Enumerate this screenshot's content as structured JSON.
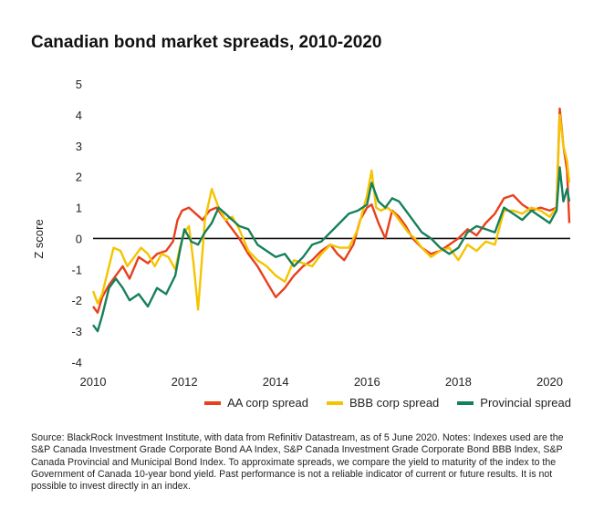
{
  "title": "Canadian bond market spreads, 2010-2020",
  "source": "Source: BlackRock Investment Institute, with data from Refinitiv Datastream, as of 5 June 2020. Notes: Indexes used are the S&P Canada Investment Grade Corporate Bond AA Index, S&P Canada Investment Grade Corporate Bond BBB Index, S&P Canada Provincial and Municipal Bond Index. To approximate spreads, we compare the yield to maturity of the index to the Government of Canada 10-year bond yield. Past performance is not a reliable indicator of current or future results. It is not possible to invest directly in an index.",
  "chart_data": {
    "type": "line",
    "title": "Canadian bond market spreads, 2010-2020",
    "xlabel": "",
    "ylabel": "Z score",
    "xlim": [
      2010,
      2020.45
    ],
    "ylim": [
      -4,
      5
    ],
    "x_ticks": [
      2010,
      2012,
      2014,
      2016,
      2018,
      2020
    ],
    "y_ticks": [
      5,
      4,
      3,
      2,
      1,
      0,
      -1,
      -2,
      -3,
      -4
    ],
    "grid": false,
    "zero_line": true,
    "legend_position": "bottom-right",
    "series": [
      {
        "name": "AA corp spread",
        "color": "#e8401c",
        "x": [
          2010.0,
          2010.1,
          2010.2,
          2010.35,
          2010.5,
          2010.65,
          2010.8,
          2011.0,
          2011.2,
          2011.4,
          2011.6,
          2011.75,
          2011.85,
          2011.95,
          2012.1,
          2012.25,
          2012.4,
          2012.55,
          2012.7,
          2012.85,
          2013.0,
          2013.2,
          2013.4,
          2013.6,
          2013.8,
          2014.0,
          2014.2,
          2014.4,
          2014.6,
          2014.8,
          2015.0,
          2015.2,
          2015.35,
          2015.5,
          2015.7,
          2015.85,
          2016.0,
          2016.1,
          2016.25,
          2016.4,
          2016.55,
          2016.7,
          2016.85,
          2017.0,
          2017.2,
          2017.4,
          2017.6,
          2017.8,
          2018.0,
          2018.2,
          2018.4,
          2018.6,
          2018.8,
          2019.0,
          2019.2,
          2019.4,
          2019.6,
          2019.8,
          2020.0,
          2020.15,
          2020.22,
          2020.3,
          2020.38,
          2020.43
        ],
        "y": [
          -2.2,
          -2.4,
          -1.9,
          -1.5,
          -1.2,
          -0.9,
          -1.3,
          -0.6,
          -0.8,
          -0.5,
          -0.4,
          -0.1,
          0.6,
          0.9,
          1.0,
          0.8,
          0.6,
          0.9,
          1.0,
          0.7,
          0.4,
          0.0,
          -0.5,
          -0.9,
          -1.4,
          -1.9,
          -1.6,
          -1.2,
          -0.9,
          -0.7,
          -0.4,
          -0.2,
          -0.5,
          -0.7,
          -0.2,
          0.6,
          1.0,
          1.1,
          0.5,
          0.0,
          0.9,
          0.7,
          0.4,
          0.0,
          -0.3,
          -0.5,
          -0.4,
          -0.2,
          0.0,
          0.3,
          0.1,
          0.5,
          0.8,
          1.3,
          1.4,
          1.1,
          0.9,
          1.0,
          0.9,
          1.0,
          4.2,
          3.0,
          2.2,
          0.5
        ]
      },
      {
        "name": "BBB corp spread",
        "color": "#f5c400",
        "x": [
          2010.0,
          2010.1,
          2010.2,
          2010.3,
          2010.45,
          2010.6,
          2010.75,
          2010.9,
          2011.05,
          2011.2,
          2011.35,
          2011.5,
          2011.65,
          2011.8,
          2011.9,
          2012.0,
          2012.1,
          2012.2,
          2012.3,
          2012.45,
          2012.6,
          2012.75,
          2012.9,
          2013.05,
          2013.2,
          2013.4,
          2013.6,
          2013.8,
          2014.0,
          2014.2,
          2014.4,
          2014.6,
          2014.8,
          2015.0,
          2015.2,
          2015.4,
          2015.6,
          2015.8,
          2016.0,
          2016.1,
          2016.2,
          2016.3,
          2016.45,
          2016.6,
          2016.75,
          2016.9,
          2017.05,
          2017.2,
          2017.4,
          2017.6,
          2017.8,
          2018.0,
          2018.2,
          2018.4,
          2018.6,
          2018.8,
          2019.0,
          2019.2,
          2019.4,
          2019.6,
          2019.8,
          2020.0,
          2020.15,
          2020.22,
          2020.3,
          2020.38,
          2020.43
        ],
        "y": [
          -1.7,
          -2.1,
          -1.8,
          -1.2,
          -0.3,
          -0.4,
          -0.9,
          -0.6,
          -0.3,
          -0.5,
          -0.9,
          -0.5,
          -0.6,
          -1.0,
          -0.3,
          0.2,
          0.4,
          -0.8,
          -2.3,
          0.6,
          1.6,
          1.0,
          0.6,
          0.7,
          0.3,
          -0.4,
          -0.7,
          -0.9,
          -1.2,
          -1.4,
          -0.7,
          -0.8,
          -0.9,
          -0.5,
          -0.2,
          -0.3,
          -0.3,
          0.3,
          1.4,
          2.2,
          1.0,
          0.9,
          1.0,
          0.8,
          0.5,
          0.2,
          0.0,
          -0.3,
          -0.6,
          -0.4,
          -0.3,
          -0.7,
          -0.2,
          -0.4,
          -0.1,
          -0.2,
          0.9,
          0.9,
          0.8,
          1.0,
          0.9,
          0.7,
          1.0,
          4.0,
          3.0,
          2.5,
          1.8
        ]
      },
      {
        "name": "Provincial spread",
        "color": "#17805a",
        "x": [
          2010.0,
          2010.1,
          2010.2,
          2010.35,
          2010.5,
          2010.65,
          2010.8,
          2011.0,
          2011.2,
          2011.4,
          2011.6,
          2011.8,
          2011.9,
          2012.0,
          2012.15,
          2012.3,
          2012.45,
          2012.6,
          2012.75,
          2012.9,
          2013.05,
          2013.2,
          2013.4,
          2013.6,
          2013.8,
          2014.0,
          2014.2,
          2014.4,
          2014.6,
          2014.8,
          2015.0,
          2015.2,
          2015.4,
          2015.6,
          2015.8,
          2016.0,
          2016.1,
          2016.25,
          2016.4,
          2016.55,
          2016.7,
          2016.85,
          2017.0,
          2017.2,
          2017.4,
          2017.6,
          2017.8,
          2018.0,
          2018.2,
          2018.4,
          2018.6,
          2018.8,
          2019.0,
          2019.2,
          2019.4,
          2019.6,
          2019.8,
          2020.0,
          2020.15,
          2020.22,
          2020.3,
          2020.38,
          2020.43
        ],
        "y": [
          -2.8,
          -3.0,
          -2.5,
          -1.6,
          -1.3,
          -1.6,
          -2.0,
          -1.8,
          -2.2,
          -1.6,
          -1.8,
          -1.2,
          -0.4,
          0.3,
          -0.1,
          -0.2,
          0.2,
          0.5,
          1.0,
          0.8,
          0.6,
          0.4,
          0.3,
          -0.2,
          -0.4,
          -0.6,
          -0.5,
          -0.9,
          -0.6,
          -0.2,
          -0.1,
          0.2,
          0.5,
          0.8,
          0.9,
          1.1,
          1.8,
          1.2,
          1.0,
          1.3,
          1.2,
          0.9,
          0.6,
          0.2,
          0.0,
          -0.3,
          -0.5,
          -0.3,
          0.2,
          0.4,
          0.3,
          0.2,
          1.0,
          0.8,
          0.6,
          0.9,
          0.7,
          0.5,
          0.9,
          2.3,
          1.2,
          1.6,
          1.2
        ]
      }
    ]
  }
}
